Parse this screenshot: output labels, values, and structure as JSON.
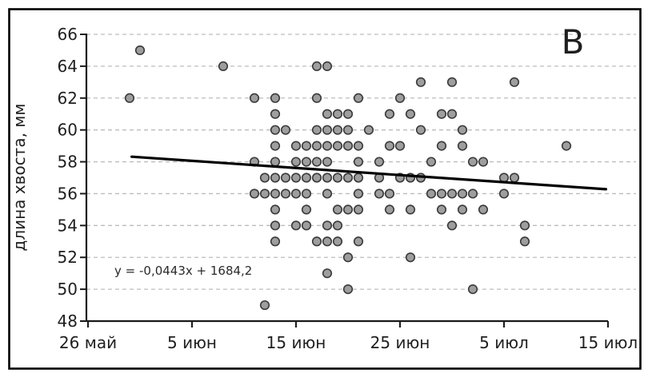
{
  "figure": {
    "panel_label": "В",
    "equation_label": "y = -0,0443x + 1684,2"
  },
  "chart_data": {
    "type": "scatter",
    "title": "",
    "xlabel": "",
    "ylabel": "длина хвоста, мм",
    "x_axis": {
      "tick_labels": [
        "26 май",
        "5 июн",
        "15 июн",
        "25 июн",
        "5 июл",
        "15 июл"
      ],
      "tick_days": [
        0,
        10,
        20,
        30,
        40,
        50
      ],
      "unit": "date (days after 26 May)"
    },
    "y_axis": {
      "ticks": [
        48,
        50,
        52,
        54,
        56,
        58,
        60,
        62,
        64,
        66
      ],
      "ylim": [
        48,
        66
      ],
      "gridlines_at": [
        50,
        52,
        54,
        56,
        58,
        60,
        62,
        64,
        66
      ],
      "grid_style": "dashed"
    },
    "points_day_mm": [
      [
        5,
        65
      ],
      [
        13,
        64
      ],
      [
        22,
        64
      ],
      [
        23,
        64
      ],
      [
        32,
        63
      ],
      [
        35,
        63
      ],
      [
        41,
        63
      ],
      [
        4,
        62
      ],
      [
        16,
        62
      ],
      [
        18,
        62
      ],
      [
        22,
        62
      ],
      [
        26,
        62
      ],
      [
        30,
        62
      ],
      [
        18,
        61
      ],
      [
        23,
        61
      ],
      [
        24,
        61
      ],
      [
        25,
        61
      ],
      [
        29,
        61
      ],
      [
        31,
        61
      ],
      [
        34,
        61
      ],
      [
        35,
        61
      ],
      [
        18,
        60
      ],
      [
        19,
        60
      ],
      [
        22,
        60
      ],
      [
        23,
        60
      ],
      [
        24,
        60
      ],
      [
        25,
        60
      ],
      [
        27,
        60
      ],
      [
        32,
        60
      ],
      [
        36,
        60
      ],
      [
        18,
        59
      ],
      [
        20,
        59
      ],
      [
        21,
        59
      ],
      [
        22,
        59
      ],
      [
        23,
        59
      ],
      [
        24,
        59
      ],
      [
        25,
        59
      ],
      [
        26,
        59
      ],
      [
        29,
        59
      ],
      [
        30,
        59
      ],
      [
        34,
        59
      ],
      [
        36,
        59
      ],
      [
        46,
        59
      ],
      [
        16,
        58
      ],
      [
        18,
        58
      ],
      [
        20,
        58
      ],
      [
        21,
        58
      ],
      [
        22,
        58
      ],
      [
        23,
        58
      ],
      [
        26,
        58
      ],
      [
        28,
        58
      ],
      [
        33,
        58
      ],
      [
        37,
        58
      ],
      [
        38,
        58
      ],
      [
        17,
        57
      ],
      [
        18,
        57
      ],
      [
        19,
        57
      ],
      [
        20,
        57
      ],
      [
        21,
        57
      ],
      [
        22,
        57
      ],
      [
        23,
        57
      ],
      [
        24,
        57
      ],
      [
        25,
        57
      ],
      [
        26,
        57
      ],
      [
        28,
        57
      ],
      [
        30,
        57
      ],
      [
        31,
        57
      ],
      [
        32,
        57
      ],
      [
        40,
        57
      ],
      [
        41,
        57
      ],
      [
        16,
        56
      ],
      [
        17,
        56
      ],
      [
        18,
        56
      ],
      [
        19,
        56
      ],
      [
        20,
        56
      ],
      [
        21,
        56
      ],
      [
        23,
        56
      ],
      [
        26,
        56
      ],
      [
        28,
        56
      ],
      [
        29,
        56
      ],
      [
        33,
        56
      ],
      [
        34,
        56
      ],
      [
        35,
        56
      ],
      [
        36,
        56
      ],
      [
        37,
        56
      ],
      [
        40,
        56
      ],
      [
        18,
        55
      ],
      [
        21,
        55
      ],
      [
        24,
        55
      ],
      [
        25,
        55
      ],
      [
        26,
        55
      ],
      [
        29,
        55
      ],
      [
        31,
        55
      ],
      [
        34,
        55
      ],
      [
        36,
        55
      ],
      [
        38,
        55
      ],
      [
        18,
        54
      ],
      [
        20,
        54
      ],
      [
        21,
        54
      ],
      [
        23,
        54
      ],
      [
        24,
        54
      ],
      [
        35,
        54
      ],
      [
        42,
        54
      ],
      [
        18,
        53
      ],
      [
        22,
        53
      ],
      [
        23,
        53
      ],
      [
        24,
        53
      ],
      [
        26,
        53
      ],
      [
        42,
        53
      ],
      [
        25,
        52
      ],
      [
        31,
        52
      ],
      [
        23,
        51
      ],
      [
        25,
        50
      ],
      [
        37,
        50
      ],
      [
        17,
        49
      ]
    ],
    "trendline": {
      "equation": "y = -0,0443x + 1684,2",
      "start": {
        "day": 4.2,
        "mm": 58.32
      },
      "end": {
        "day": 49.8,
        "mm": 56.28
      }
    },
    "style": {
      "marker_fill": "#9e9e9e",
      "marker_stroke": "#3a3a3a",
      "trendline_color": "#000000",
      "gridline_color": "#bdbdbd",
      "axis_color": "#1a1a1a",
      "frame_color": "#000000"
    }
  }
}
